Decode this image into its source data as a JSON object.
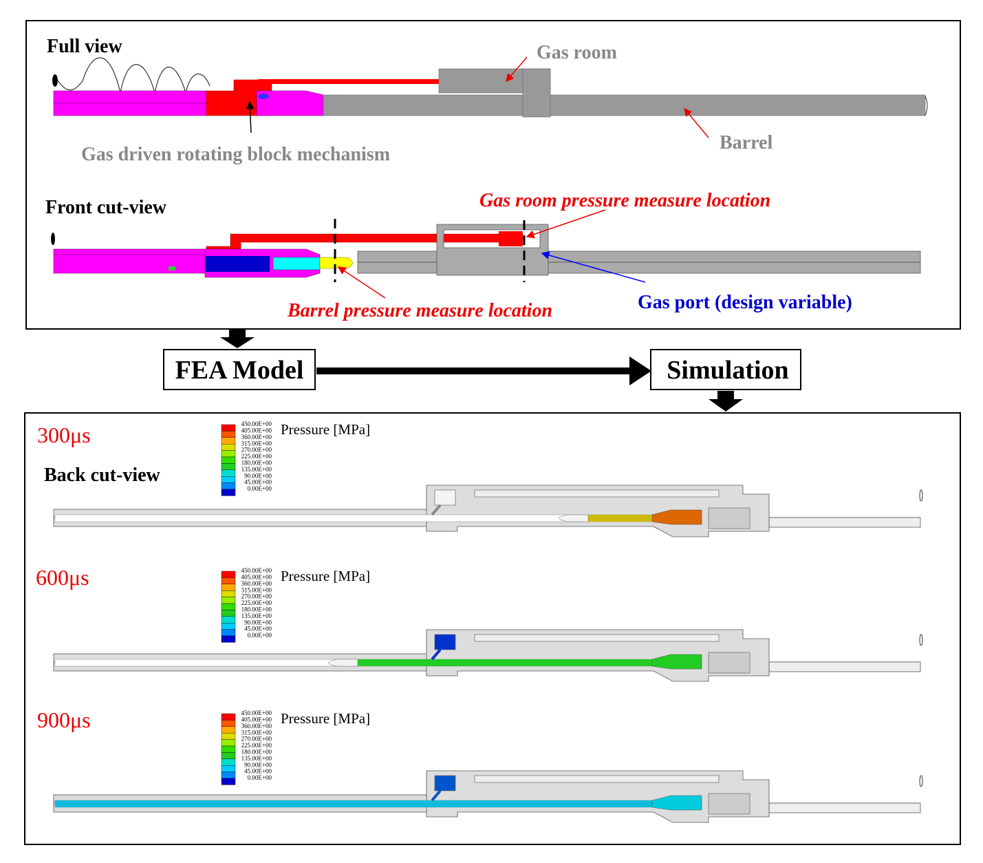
{
  "model": {
    "full_view": {
      "title": "Full view",
      "gas_room": "Gas room",
      "barrel": "Barrel",
      "mechanism": "Gas driven rotating block mechanism"
    },
    "front_cut_view": {
      "title": "Front cut-view",
      "gas_room_pressure": "Gas room pressure measure location",
      "barrel_pressure": "Barrel pressure measure location",
      "gas_port": "Gas port (design variable)"
    }
  },
  "flow": {
    "fea_model": "FEA Model",
    "simulation": "Simulation"
  },
  "simulation": {
    "view_title": "Back cut-view",
    "legend": {
      "title": "Pressure [MPa]",
      "labels": [
        "450.00E+00",
        "405.00E+00",
        "360.00E+00",
        "315.00E+00",
        "270.00E+00",
        "225.00E+00",
        "180.00E+00",
        "135.00E+00",
        "90.00E+00",
        "45.00E+00",
        "0.00E+00"
      ]
    },
    "panels": [
      {
        "time": "300μs"
      },
      {
        "time": "600μs"
      },
      {
        "time": "900μs"
      }
    ]
  }
}
